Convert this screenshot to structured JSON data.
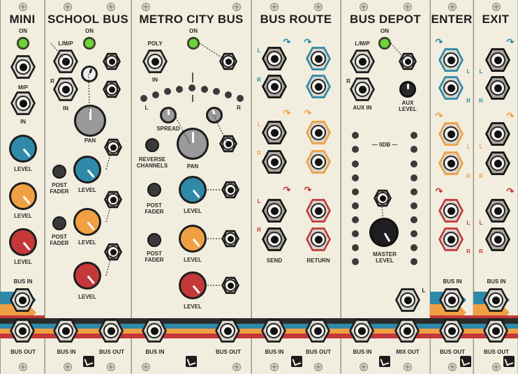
{
  "modules": {
    "mini": {
      "title": "MINI",
      "on": "ON",
      "mp": "M/P",
      "in": "IN",
      "level": "LEVEL",
      "bus_in": "BUS IN",
      "bus_out": "BUS OUT"
    },
    "school_bus": {
      "title": "SCHOOL BUS",
      "on": "ON",
      "lmp": "L/M/P",
      "r": "R",
      "in": "IN",
      "pan": "PAN",
      "post_fader": "POST\nFADER",
      "level": "LEVEL",
      "bus_in": "BUS IN",
      "bus_out": "BUS OUT"
    },
    "metro_city_bus": {
      "title": "METRO CITY BUS",
      "on": "ON",
      "poly": "POLY",
      "in": "IN",
      "l": "L",
      "r": "R",
      "spread": "SPREAD",
      "reverse": "REVERSE\nCHANNELS",
      "pan": "PAN",
      "post_fader": "POST\nFADER",
      "level": "LEVEL",
      "bus_in": "BUS IN",
      "bus_out": "BUS OUT"
    },
    "bus_route": {
      "title": "BUS ROUTE",
      "l": "L",
      "r": "R",
      "send": "SEND",
      "return": "RETURN",
      "bus_in": "BUS IN",
      "bus_out": "BUS OUT"
    },
    "bus_depot": {
      "title": "BUS DEPOT",
      "on": "ON",
      "lmp": "L/M/P",
      "r": "R",
      "aux_in": "AUX IN",
      "aux_level": "AUX\nLEVEL",
      "odb": "— 0DB —",
      "master_level": "MASTER\nLEVEL",
      "l": "L",
      "bus_in": "BUS IN",
      "mix_out": "MIX OUT"
    },
    "enter": {
      "title": "ENTER",
      "l": "L",
      "r": "R",
      "bus_in": "BUS IN",
      "bus_out": "BUS OUT"
    },
    "exit": {
      "title": "EXIT",
      "l": "L",
      "r": "R",
      "bus_in": "BUS IN",
      "bus_out": "BUS OUT"
    }
  },
  "colors": {
    "panel": "#f2eedf",
    "blue": "#2f89a8",
    "orange": "#f0a043",
    "red": "#c4383a",
    "gray": "#9a9a9a",
    "led_green": "#6fd33a",
    "stripe_dark": "#2b2b2b"
  },
  "icons": {
    "screw": "screw-icon",
    "logo": "brand-logo-icon",
    "arrow": "curved-arrow-icon"
  }
}
